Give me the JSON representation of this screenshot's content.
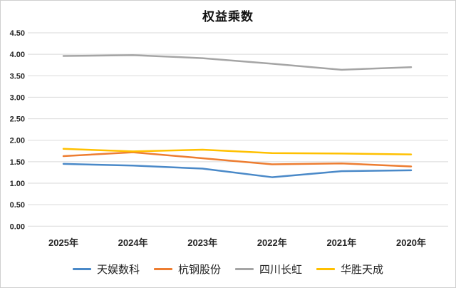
{
  "window": {
    "background": "#ffffff",
    "border_color": "#cfcfcf"
  },
  "chart_data": {
    "type": "line",
    "title": "权益乘数",
    "categories": [
      "2025年",
      "2024年",
      "2023年",
      "2022年",
      "2021年",
      "2020年"
    ],
    "series": [
      {
        "name": "天娱数科",
        "color": "#4A89C8",
        "values": [
          1.45,
          1.41,
          1.34,
          1.14,
          1.28,
          1.3
        ]
      },
      {
        "name": "杭钢股份",
        "color": "#ED7D31",
        "values": [
          1.63,
          1.72,
          1.58,
          1.44,
          1.46,
          1.39
        ]
      },
      {
        "name": "四川长虹",
        "color": "#A5A5A5",
        "values": [
          3.96,
          3.98,
          3.91,
          3.78,
          3.64,
          3.7
        ]
      },
      {
        "name": "华胜天成",
        "color": "#FFC000",
        "values": [
          1.8,
          1.74,
          1.78,
          1.7,
          1.69,
          1.67
        ]
      }
    ],
    "xlabel": "",
    "ylabel": "",
    "ylim": [
      0,
      4.5
    ],
    "y_tick_step": 0.5,
    "y_tick_labels": [
      "0.00",
      "0.50",
      "1.00",
      "1.50",
      "2.00",
      "2.50",
      "3.00",
      "3.50",
      "4.00",
      "4.50"
    ],
    "grid": true,
    "gridline_color": "#d9d9d9",
    "axis_label_color": "#262626",
    "legend_position": "bottom"
  }
}
